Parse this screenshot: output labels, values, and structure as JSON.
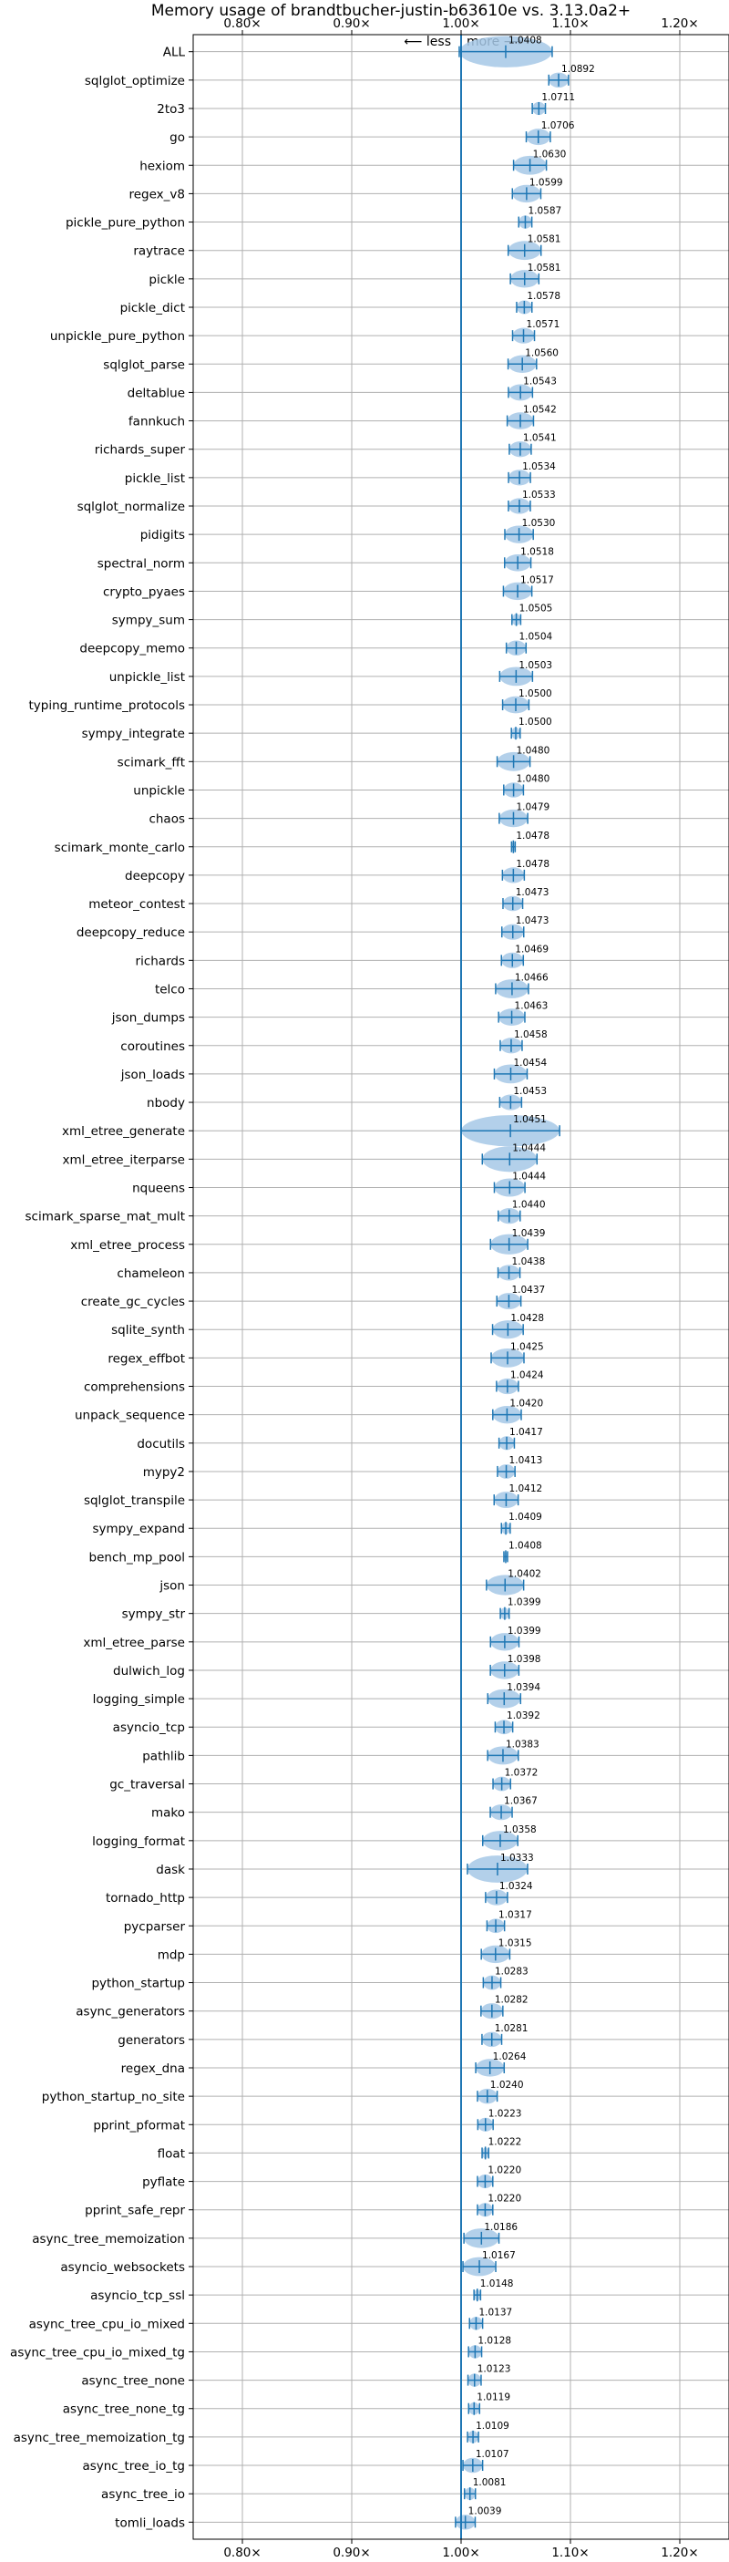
{
  "chart_data": {
    "type": "violin",
    "title": "Memory usage of brandtbucher-justin-b63610e vs. 3.13.0a2+",
    "direction_labels": {
      "less": "⟵ less",
      "more": "more ⟶"
    },
    "xlim": [
      0.755,
      1.245
    ],
    "x_ticks": [
      0.8,
      0.9,
      1.0,
      1.1,
      1.2
    ],
    "x_tick_labels": [
      "0.80×",
      "0.90×",
      "1.00×",
      "1.10×",
      "1.20×"
    ],
    "grid": true,
    "colors": {
      "violin": "#a6c8e6",
      "line": "#1f77b4",
      "grid": "#b0b0b0"
    },
    "benchmarks": [
      {
        "name": "ALL",
        "value": 1.0408,
        "spread": 0.085
      },
      {
        "name": "sqlglot_optimize",
        "value": 1.0892,
        "spread": 0.018
      },
      {
        "name": "2to3",
        "value": 1.0711,
        "spread": 0.012
      },
      {
        "name": "go",
        "value": 1.0706,
        "spread": 0.022
      },
      {
        "name": "hexiom",
        "value": 1.063,
        "spread": 0.03
      },
      {
        "name": "regex_v8",
        "value": 1.0599,
        "spread": 0.026
      },
      {
        "name": "pickle_pure_python",
        "value": 1.0587,
        "spread": 0.012
      },
      {
        "name": "raytrace",
        "value": 1.0581,
        "spread": 0.03
      },
      {
        "name": "pickle",
        "value": 1.0581,
        "spread": 0.026
      },
      {
        "name": "pickle_dict",
        "value": 1.0578,
        "spread": 0.014
      },
      {
        "name": "unpickle_pure_python",
        "value": 1.0571,
        "spread": 0.02
      },
      {
        "name": "sqlglot_parse",
        "value": 1.056,
        "spread": 0.026
      },
      {
        "name": "deltablue",
        "value": 1.0543,
        "spread": 0.022
      },
      {
        "name": "fannkuch",
        "value": 1.0542,
        "spread": 0.024
      },
      {
        "name": "richards_super",
        "value": 1.0541,
        "spread": 0.02
      },
      {
        "name": "pickle_list",
        "value": 1.0534,
        "spread": 0.02
      },
      {
        "name": "sqlglot_normalize",
        "value": 1.0533,
        "spread": 0.02
      },
      {
        "name": "pidigits",
        "value": 1.053,
        "spread": 0.026
      },
      {
        "name": "spectral_norm",
        "value": 1.0518,
        "spread": 0.024
      },
      {
        "name": "crypto_pyaes",
        "value": 1.0517,
        "spread": 0.026
      },
      {
        "name": "sympy_sum",
        "value": 1.0505,
        "spread": 0.008
      },
      {
        "name": "deepcopy_memo",
        "value": 1.0504,
        "spread": 0.018
      },
      {
        "name": "unpickle_list",
        "value": 1.0503,
        "spread": 0.03
      },
      {
        "name": "typing_runtime_protocols",
        "value": 1.05,
        "spread": 0.024
      },
      {
        "name": "sympy_integrate",
        "value": 1.05,
        "spread": 0.008
      },
      {
        "name": "scimark_fft",
        "value": 1.048,
        "spread": 0.03
      },
      {
        "name": "unpickle",
        "value": 1.048,
        "spread": 0.018
      },
      {
        "name": "chaos",
        "value": 1.0479,
        "spread": 0.026
      },
      {
        "name": "scimark_monte_carlo",
        "value": 1.0478,
        "spread": 0.002
      },
      {
        "name": "deepcopy",
        "value": 1.0478,
        "spread": 0.02
      },
      {
        "name": "meteor_contest",
        "value": 1.0473,
        "spread": 0.018
      },
      {
        "name": "deepcopy_reduce",
        "value": 1.0473,
        "spread": 0.02
      },
      {
        "name": "richards",
        "value": 1.0469,
        "spread": 0.02
      },
      {
        "name": "telco",
        "value": 1.0466,
        "spread": 0.03
      },
      {
        "name": "json_dumps",
        "value": 1.0463,
        "spread": 0.024
      },
      {
        "name": "coroutines",
        "value": 1.0458,
        "spread": 0.02
      },
      {
        "name": "json_loads",
        "value": 1.0454,
        "spread": 0.03
      },
      {
        "name": "nbody",
        "value": 1.0453,
        "spread": 0.02
      },
      {
        "name": "xml_etree_generate",
        "value": 1.0451,
        "spread": 0.09
      },
      {
        "name": "xml_etree_iterparse",
        "value": 1.0444,
        "spread": 0.05
      },
      {
        "name": "nqueens",
        "value": 1.0444,
        "spread": 0.028
      },
      {
        "name": "scimark_sparse_mat_mult",
        "value": 1.044,
        "spread": 0.02
      },
      {
        "name": "xml_etree_process",
        "value": 1.0439,
        "spread": 0.034
      },
      {
        "name": "chameleon",
        "value": 1.0438,
        "spread": 0.02
      },
      {
        "name": "create_gc_cycles",
        "value": 1.0437,
        "spread": 0.022
      },
      {
        "name": "sqlite_synth",
        "value": 1.0428,
        "spread": 0.028
      },
      {
        "name": "regex_effbot",
        "value": 1.0425,
        "spread": 0.03
      },
      {
        "name": "comprehensions",
        "value": 1.0424,
        "spread": 0.02
      },
      {
        "name": "unpack_sequence",
        "value": 1.042,
        "spread": 0.026
      },
      {
        "name": "docutils",
        "value": 1.0417,
        "spread": 0.014
      },
      {
        "name": "mypy2",
        "value": 1.0413,
        "spread": 0.016
      },
      {
        "name": "sqlglot_transpile",
        "value": 1.0412,
        "spread": 0.022
      },
      {
        "name": "sympy_expand",
        "value": 1.0409,
        "spread": 0.008
      },
      {
        "name": "bench_mp_pool",
        "value": 1.0408,
        "spread": 0.002
      },
      {
        "name": "json",
        "value": 1.0402,
        "spread": 0.034
      },
      {
        "name": "sympy_str",
        "value": 1.0399,
        "spread": 0.008
      },
      {
        "name": "xml_etree_parse",
        "value": 1.0399,
        "spread": 0.026
      },
      {
        "name": "dulwich_log",
        "value": 1.0398,
        "spread": 0.026
      },
      {
        "name": "logging_simple",
        "value": 1.0394,
        "spread": 0.03
      },
      {
        "name": "asyncio_tcp",
        "value": 1.0392,
        "spread": 0.016
      },
      {
        "name": "pathlib",
        "value": 1.0383,
        "spread": 0.028
      },
      {
        "name": "gc_traversal",
        "value": 1.0372,
        "spread": 0.016
      },
      {
        "name": "mako",
        "value": 1.0367,
        "spread": 0.02
      },
      {
        "name": "logging_format",
        "value": 1.0358,
        "spread": 0.032
      },
      {
        "name": "dask",
        "value": 1.0333,
        "spread": 0.055
      },
      {
        "name": "tornado_http",
        "value": 1.0324,
        "spread": 0.02
      },
      {
        "name": "pycparser",
        "value": 1.0317,
        "spread": 0.016
      },
      {
        "name": "mdp",
        "value": 1.0315,
        "spread": 0.026
      },
      {
        "name": "python_startup",
        "value": 1.0283,
        "spread": 0.016
      },
      {
        "name": "async_generators",
        "value": 1.0282,
        "spread": 0.02
      },
      {
        "name": "generators",
        "value": 1.0281,
        "spread": 0.018
      },
      {
        "name": "regex_dna",
        "value": 1.0264,
        "spread": 0.026
      },
      {
        "name": "python_startup_no_site",
        "value": 1.024,
        "spread": 0.018
      },
      {
        "name": "pprint_pformat",
        "value": 1.0223,
        "spread": 0.014
      },
      {
        "name": "float",
        "value": 1.0222,
        "spread": 0.006
      },
      {
        "name": "pyflate",
        "value": 1.022,
        "spread": 0.014
      },
      {
        "name": "pprint_safe_repr",
        "value": 1.022,
        "spread": 0.014
      },
      {
        "name": "async_tree_memoization",
        "value": 1.0186,
        "spread": 0.032
      },
      {
        "name": "asyncio_websockets",
        "value": 1.0167,
        "spread": 0.03
      },
      {
        "name": "asyncio_tcp_ssl",
        "value": 1.0148,
        "spread": 0.006
      },
      {
        "name": "async_tree_cpu_io_mixed",
        "value": 1.0137,
        "spread": 0.012
      },
      {
        "name": "async_tree_cpu_io_mixed_tg",
        "value": 1.0128,
        "spread": 0.012
      },
      {
        "name": "async_tree_none",
        "value": 1.0123,
        "spread": 0.012
      },
      {
        "name": "async_tree_none_tg",
        "value": 1.0119,
        "spread": 0.01
      },
      {
        "name": "async_tree_memoization_tg",
        "value": 1.0109,
        "spread": 0.01
      },
      {
        "name": "async_tree_io_tg",
        "value": 1.0107,
        "spread": 0.018
      },
      {
        "name": "async_tree_io",
        "value": 1.0081,
        "spread": 0.01
      },
      {
        "name": "tomli_loads",
        "value": 1.0039,
        "spread": 0.018
      }
    ]
  }
}
